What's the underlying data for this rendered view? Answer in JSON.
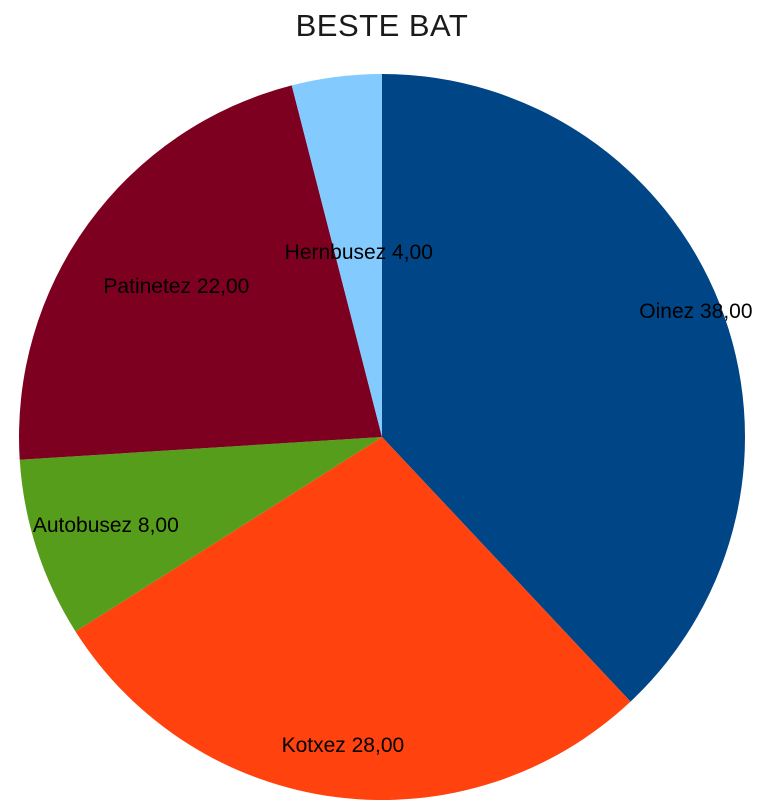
{
  "chart_data": {
    "type": "pie",
    "title": "BESTE BAT",
    "slices": [
      {
        "name": "Oinez",
        "value": 38,
        "label": "Oinez 38,00",
        "color": "#004586"
      },
      {
        "name": "Kotxez",
        "value": 28,
        "label": "Kotxez 28,00",
        "color": "#ff420e"
      },
      {
        "name": "Autobusez",
        "value": 8,
        "label": "Autobusez 8,00",
        "color": "#579d1c"
      },
      {
        "name": "Patinetez",
        "value": 22,
        "label": "Patinetez 22,00",
        "color": "#7e0021"
      },
      {
        "name": "Hernbusez",
        "value": 4,
        "label": "Hernbusez 4,00",
        "color": "#83caff"
      }
    ],
    "start_angle_deg": 0,
    "direction": "clockwise",
    "legend": "none"
  }
}
